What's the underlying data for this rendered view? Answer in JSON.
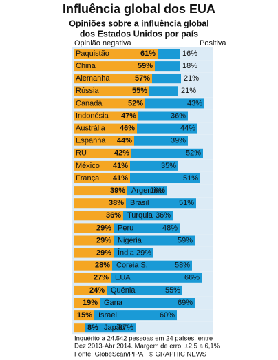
{
  "chart_data": {
    "type": "bar",
    "stacked": true,
    "orientation": "horizontal",
    "title": "Influência global dos EUA",
    "subtitle": [
      "Opiniões sobre a influência global",
      "dos Estados Unidos por país"
    ],
    "categories": [
      "Paquistão",
      "China",
      "Alemanha",
      "Rússia",
      "Canadá",
      "Indonésia",
      "Austrália",
      "Espanha",
      "RU",
      "México",
      "França",
      "Argentina",
      "Brasil",
      "Turquia",
      "Peru",
      "Nigéria",
      "Índia",
      "Coreia S.",
      "EUA",
      "Quénia",
      "Gana",
      "Israel",
      "Japão"
    ],
    "series": [
      {
        "name": "Opinião negativa",
        "color": "#f5a623",
        "values": [
          61,
          59,
          57,
          55,
          52,
          47,
          46,
          44,
          42,
          41,
          41,
          39,
          38,
          36,
          29,
          29,
          29,
          28,
          27,
          24,
          19,
          15,
          8
        ],
        "value_labels": [
          "61%",
          "59%",
          "57%",
          "55%",
          "52%",
          "47%",
          "46%",
          "44%",
          "42%",
          "41%",
          "41%",
          "39%",
          "38%",
          "36%",
          "29%",
          "29%",
          "29%",
          "28%",
          "27%",
          "24%",
          "19%",
          "15%",
          "8%"
        ]
      },
      {
        "name": "Positiva",
        "color": "#1a9ad6",
        "values": [
          16,
          18,
          21,
          21,
          43,
          36,
          44,
          39,
          52,
          35,
          51,
          29,
          51,
          36,
          48,
          59,
          29,
          58,
          66,
          55,
          69,
          60,
          37
        ],
        "value_labels": [
          "16%",
          "18%",
          "21%",
          "21%",
          "43%",
          "36%",
          "44%",
          "39%",
          "52%",
          "35%",
          "51%",
          "29%",
          "51%",
          "36%",
          "48%",
          "59%",
          "29%",
          "58%",
          "66%",
          "55%",
          "69%",
          "60%",
          "37%"
        ]
      }
    ],
    "xlim": [
      0,
      100
    ],
    "footnote": [
      "Inquérito a 24.542 pessoas em 24 países, entre",
      "Dez 2013-Abr 2014. Margem de erro: ±2,5 a 6,1%"
    ],
    "source": "Fonte: GlobeScan/PIPA",
    "credit": "© GRAPHIC NEWS"
  }
}
